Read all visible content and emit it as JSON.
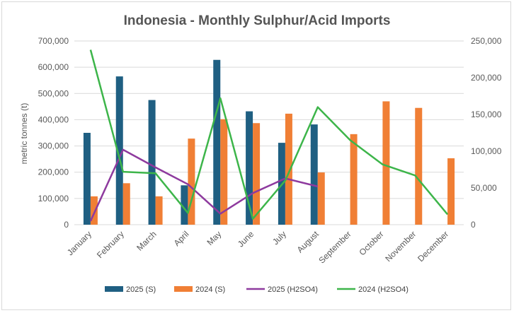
{
  "chart_data": {
    "type": "bar",
    "title": "Indonesia - Monthly Sulphur/Acid Imports",
    "ylabel": "metric tonnes (t)",
    "xlabel": "",
    "ylim": [
      0,
      700000
    ],
    "y2lim": [
      0,
      250000
    ],
    "yticks": [
      "0",
      "100,000",
      "200,000",
      "300,000",
      "400,000",
      "500,000",
      "600,000",
      "700,000"
    ],
    "y2ticks": [
      "0",
      "50,000",
      "100,000",
      "150,000",
      "200,000",
      "250,000"
    ],
    "categories": [
      "January",
      "February",
      "March",
      "April",
      "May",
      "June",
      "July",
      "August",
      "September",
      "October",
      "November",
      "December"
    ],
    "grid": true,
    "legend_position": "bottom",
    "series": [
      {
        "name": "2025 (S)",
        "kind": "bar",
        "axis": "left",
        "color": "#1f5f82",
        "values": [
          350000,
          565000,
          475000,
          150000,
          628000,
          432000,
          312000,
          382000,
          null,
          null,
          null,
          null
        ]
      },
      {
        "name": "2024 (S)",
        "kind": "bar",
        "axis": "left",
        "color": "#f07f35",
        "values": [
          108000,
          158000,
          108000,
          328000,
          402000,
          387000,
          423000,
          199000,
          345000,
          470000,
          445000,
          253000
        ]
      },
      {
        "name": "2025 (H2SO4)",
        "kind": "line",
        "axis": "right",
        "color": "#8e3a9e",
        "values": [
          5000,
          102000,
          78000,
          55000,
          15000,
          43000,
          63000,
          52000,
          null,
          null,
          null,
          null
        ]
      },
      {
        "name": "2024 (H2SO4)",
        "kind": "line",
        "axis": "right",
        "color": "#3db54a",
        "values": [
          238000,
          72000,
          70000,
          16000,
          172000,
          8000,
          60000,
          160000,
          115000,
          82000,
          67000,
          14000
        ]
      }
    ]
  }
}
